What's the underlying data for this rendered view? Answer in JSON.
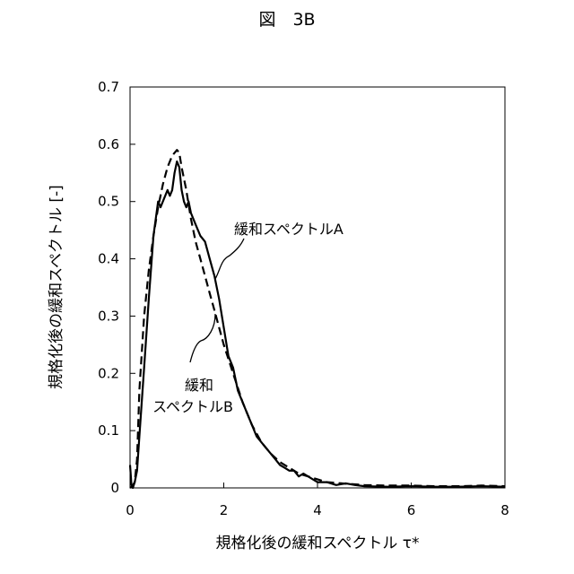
{
  "chart_data": {
    "type": "line",
    "title": "図　3B",
    "xlabel": "規格化後の緩和スペクトル τ*",
    "ylabel": "規格化後の緩和スペクトル [-]",
    "xlim": [
      0,
      8
    ],
    "ylim": [
      0,
      0.7
    ],
    "x_ticks": [
      0,
      2,
      4,
      6,
      8
    ],
    "y_ticks": [
      0,
      0.1,
      0.2,
      0.3,
      0.4,
      0.5,
      0.6,
      0.7
    ],
    "x_tick_labels": [
      "0",
      "2",
      "4",
      "6",
      "8"
    ],
    "y_tick_labels": [
      "0",
      "0.1",
      "0.2",
      "0.3",
      "0.4",
      "0.5",
      "0.6",
      "0.7"
    ],
    "grid": false,
    "annotations": [
      {
        "text": "緩和スペクトルA",
        "series": "緩和スペクトルA"
      },
      {
        "text": "緩和",
        "series": "緩和スペクトルB"
      },
      {
        "text": "スペクトルB",
        "series": "緩和スペクトルB"
      }
    ],
    "series": [
      {
        "name": "緩和スペクトルA",
        "style": "solid",
        "x": [
          0,
          0.03,
          0.06,
          0.1,
          0.15,
          0.2,
          0.3,
          0.4,
          0.5,
          0.6,
          0.65,
          0.7,
          0.75,
          0.8,
          0.85,
          0.9,
          0.95,
          1.0,
          1.05,
          1.1,
          1.15,
          1.2,
          1.25,
          1.3,
          1.4,
          1.5,
          1.6,
          1.7,
          1.8,
          1.9,
          2.0,
          2.1,
          2.2,
          2.3,
          2.4,
          2.5,
          2.6,
          2.7,
          2.8,
          2.9,
          3.0,
          3.1,
          3.2,
          3.3,
          3.4,
          3.5,
          3.6,
          3.7,
          3.8,
          3.9,
          4.0,
          4.2,
          4.4,
          4.6,
          4.8,
          5.0,
          5.5,
          6.0,
          6.5,
          7.0,
          7.5,
          8.0
        ],
        "y": [
          0.04,
          0.005,
          0.0,
          0.01,
          0.03,
          0.09,
          0.21,
          0.33,
          0.44,
          0.5,
          0.49,
          0.5,
          0.51,
          0.52,
          0.51,
          0.52,
          0.55,
          0.57,
          0.56,
          0.52,
          0.5,
          0.49,
          0.5,
          0.48,
          0.46,
          0.44,
          0.43,
          0.4,
          0.37,
          0.33,
          0.28,
          0.23,
          0.21,
          0.17,
          0.15,
          0.13,
          0.11,
          0.09,
          0.08,
          0.07,
          0.06,
          0.05,
          0.04,
          0.035,
          0.03,
          0.03,
          0.02,
          0.025,
          0.02,
          0.015,
          0.01,
          0.01,
          0.005,
          0.008,
          0.005,
          0.003,
          0.002,
          0.003,
          0.002,
          0.002,
          0.003,
          0.002
        ]
      },
      {
        "name": "緩和スペクトルB",
        "style": "dashed",
        "x": [
          0,
          0.05,
          0.1,
          0.15,
          0.2,
          0.3,
          0.4,
          0.5,
          0.6,
          0.7,
          0.8,
          0.9,
          0.95,
          1.0,
          1.05,
          1.1,
          1.2,
          1.3,
          1.4,
          1.5,
          1.6,
          1.7,
          1.8,
          1.9,
          2.0,
          2.2,
          2.4,
          2.6,
          2.8,
          3.0,
          3.2,
          3.4,
          3.6,
          3.8,
          4.0,
          4.2,
          4.5,
          5.0,
          5.5,
          6.0,
          6.5,
          7.0,
          7.5,
          8.0
        ],
        "y": [
          0.0,
          0.003,
          0.01,
          0.05,
          0.17,
          0.3,
          0.38,
          0.44,
          0.49,
          0.53,
          0.56,
          0.58,
          0.585,
          0.59,
          0.585,
          0.56,
          0.52,
          0.47,
          0.43,
          0.4,
          0.37,
          0.34,
          0.31,
          0.28,
          0.25,
          0.2,
          0.15,
          0.11,
          0.08,
          0.06,
          0.045,
          0.035,
          0.025,
          0.02,
          0.015,
          0.01,
          0.008,
          0.005,
          0.004,
          0.004,
          0.003,
          0.003,
          0.004,
          0.003
        ]
      }
    ]
  }
}
